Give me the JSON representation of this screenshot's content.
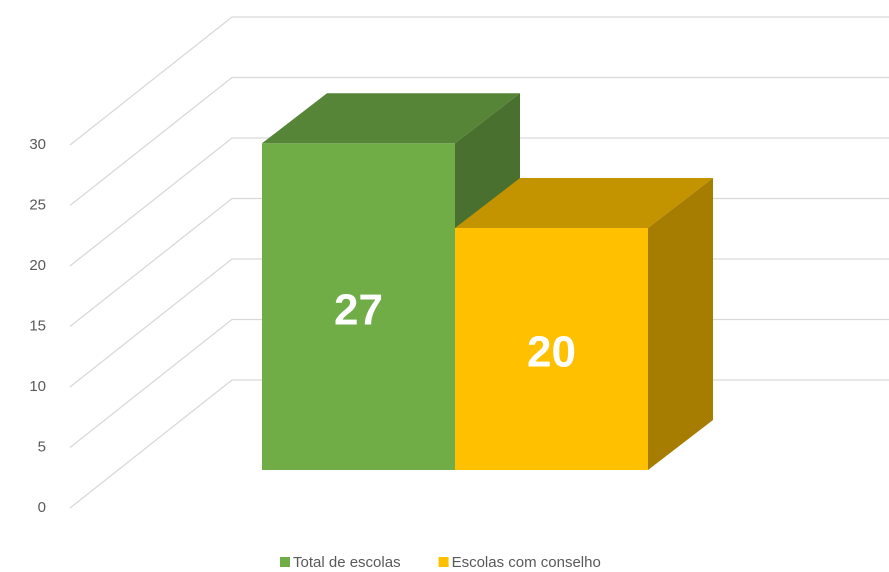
{
  "chart_data": {
    "type": "bar3d",
    "categories": [
      null
    ],
    "series": [
      {
        "name": "Total de escolas",
        "color": "#70ad47",
        "values": [
          27
        ]
      },
      {
        "name": "Escolas com conselho",
        "color": "#ffc000",
        "values": [
          20
        ]
      }
    ],
    "ylim": [
      0,
      30
    ],
    "yticks": [
      0,
      5,
      10,
      15,
      20,
      25,
      30
    ],
    "grid": true,
    "legend": "bottom"
  }
}
